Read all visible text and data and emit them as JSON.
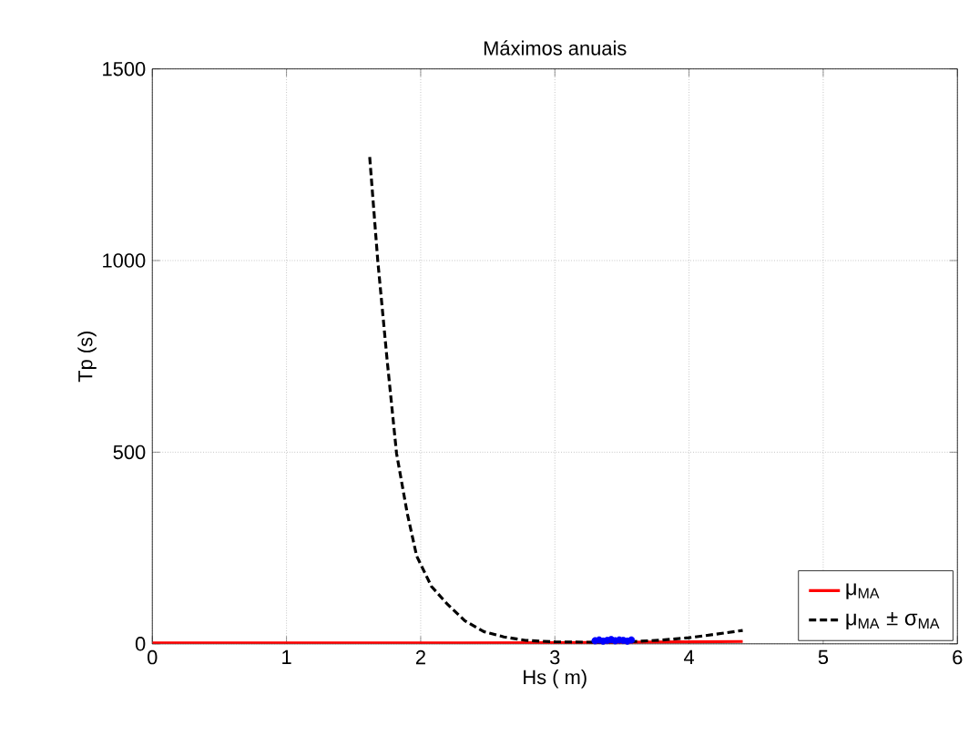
{
  "chart_data": {
    "type": "line",
    "title": "Máximos anuais",
    "xlabel": "Hs ( m)",
    "ylabel": "Tp (s)",
    "xlim": [
      0,
      6
    ],
    "ylim": [
      0,
      1500
    ],
    "xticks": [
      0,
      1,
      2,
      3,
      4,
      5,
      6
    ],
    "yticks": [
      0,
      500,
      1000,
      1500
    ],
    "grid": true,
    "legend": "bottom right",
    "series": [
      {
        "name": "μ$_{MA}$",
        "color": "#ff0000",
        "line_style": "solid",
        "x": [
          0,
          1,
          2,
          3,
          3.5,
          4,
          4.4
        ],
        "values": [
          2,
          2,
          2,
          3,
          4,
          5,
          6
        ]
      },
      {
        "name": "μ$_{MA}$ ± σ$_{MA}$",
        "color": "#000000",
        "line_style": "dashed",
        "x": [
          1.62,
          1.68,
          1.75,
          1.82,
          1.9,
          1.97,
          2.08,
          2.2,
          2.33,
          2.47,
          2.62,
          2.78,
          3.0,
          3.3,
          3.6,
          3.8,
          4.0,
          4.2,
          4.4
        ],
        "values": [
          1270,
          1000,
          740,
          497,
          340,
          229,
          150,
          103,
          60,
          32,
          18,
          9,
          5,
          4,
          6,
          10,
          16,
          25,
          35
        ]
      },
      {
        "type": "scatter",
        "color": "#0000ff",
        "x": [
          3.3,
          3.33,
          3.36,
          3.39,
          3.42,
          3.45,
          3.48,
          3.51,
          3.54,
          3.57
        ],
        "values": [
          8,
          10,
          7,
          9,
          11,
          8,
          10,
          9,
          7,
          10
        ]
      }
    ]
  }
}
